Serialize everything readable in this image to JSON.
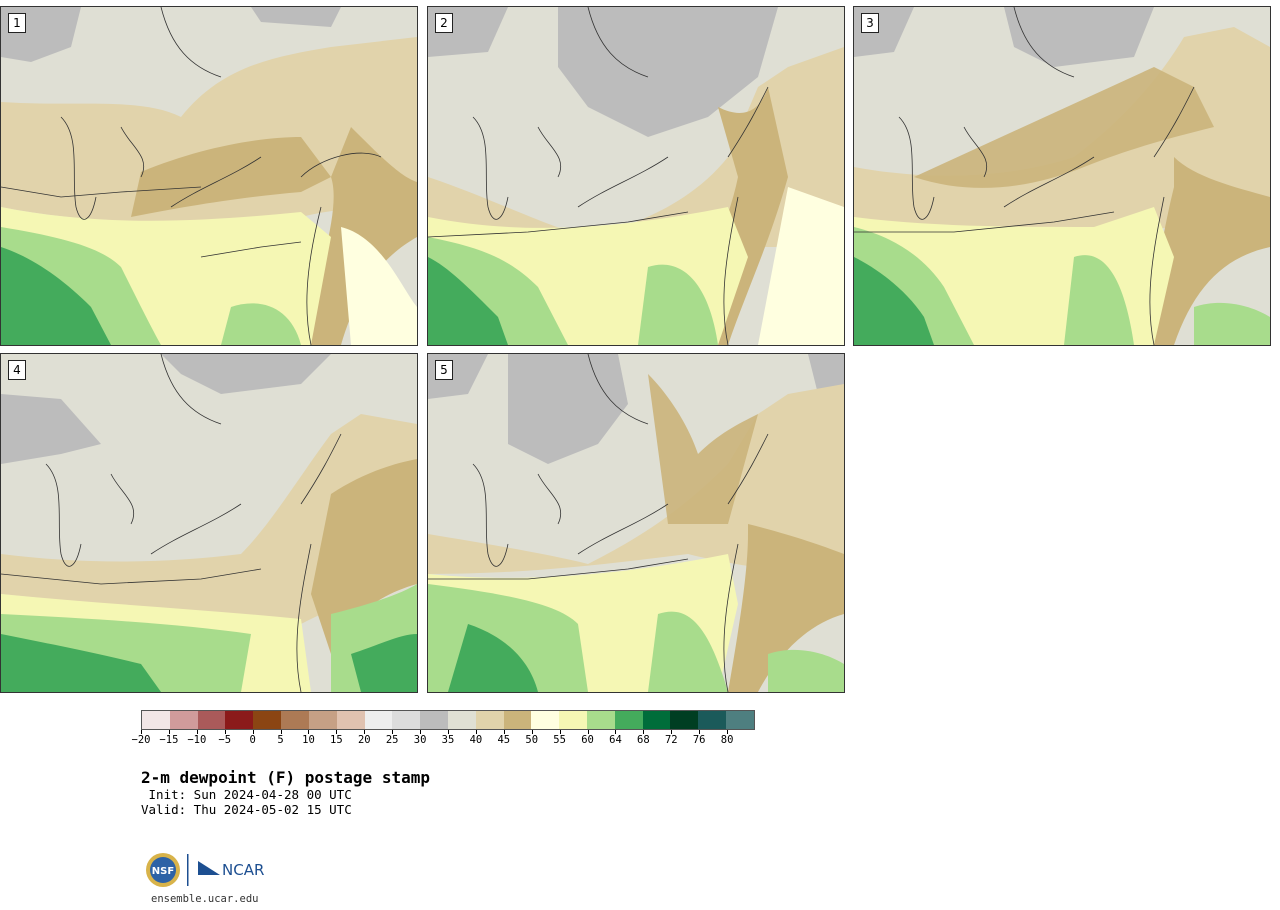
{
  "panels": [
    {
      "label": "1"
    },
    {
      "label": "2"
    },
    {
      "label": "3"
    },
    {
      "label": "4"
    },
    {
      "label": "5"
    }
  ],
  "colorbar": {
    "colors": [
      "#f2e6e6",
      "#d09b9b",
      "#aa5a5a",
      "#8b1a1a",
      "#8b4513",
      "#ad7a55",
      "#c6a085",
      "#e0c2b0",
      "#eeeeee",
      "#dcdcdc",
      "#bcbcbc",
      "#e0e0d4",
      "#e1d3ab",
      "#cbb47b",
      "#ffffe0",
      "#f5f7b4",
      "#a8dc8c",
      "#44ab5c",
      "#006d3a",
      "#003e22",
      "#1b5a5a",
      "#4e7f80"
    ],
    "ticks": [
      "−20",
      "−15",
      "−10",
      "−5",
      "0",
      "5",
      "10",
      "15",
      "20",
      "25",
      "30",
      "35",
      "40",
      "45",
      "50",
      "55",
      "60",
      "64",
      "68",
      "72",
      "76",
      "80"
    ]
  },
  "legend": {
    "title": "2-m dewpoint (F) postage stamp",
    "init": " Init: Sun 2024-04-28 00 UTC",
    "valid": "Valid: Thu 2024-05-02 15 UTC"
  },
  "footer": {
    "url": "ensemble.ucar.edu",
    "nsf_logo": "NSF",
    "ncar_logo": "NCAR"
  }
}
